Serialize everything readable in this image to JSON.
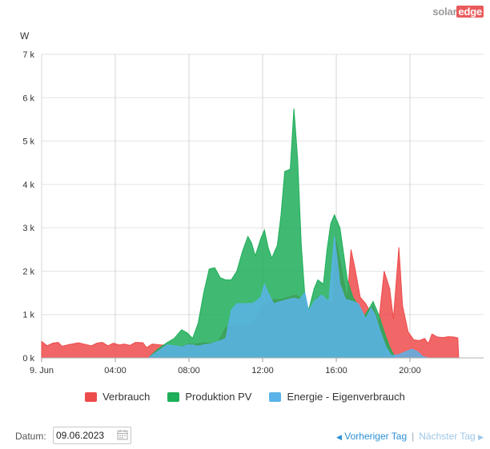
{
  "logo": {
    "part1": "solar",
    "part2": "edge"
  },
  "chart_data": {
    "type": "area",
    "ylabel": "W",
    "y_ticks": [
      "0 k",
      "1 k",
      "2 k",
      "3 k",
      "4 k",
      "5 k",
      "6 k",
      "7 k"
    ],
    "ylim": [
      0,
      7000
    ],
    "x_ticks": [
      {
        "label": "9. Jun",
        "h": 0
      },
      {
        "label": "04:00",
        "h": 4
      },
      {
        "label": "08:00",
        "h": 8
      },
      {
        "label": "12:00",
        "h": 12
      },
      {
        "label": "16:00",
        "h": 16
      },
      {
        "label": "20:00",
        "h": 20
      }
    ],
    "xlim_hours": [
      0,
      24
    ],
    "grid": true,
    "legend_position": "bottom",
    "series": [
      {
        "name": "Verbrauch",
        "color": "#ee4b4b",
        "points": [
          [
            0,
            380
          ],
          [
            0.3,
            280
          ],
          [
            0.6,
            340
          ],
          [
            0.9,
            360
          ],
          [
            1.1,
            270
          ],
          [
            1.5,
            310
          ],
          [
            2,
            350
          ],
          [
            2.4,
            310
          ],
          [
            2.7,
            280
          ],
          [
            3,
            340
          ],
          [
            3.3,
            360
          ],
          [
            3.6,
            280
          ],
          [
            3.9,
            340
          ],
          [
            4.2,
            300
          ],
          [
            4.5,
            320
          ],
          [
            4.8,
            290
          ],
          [
            5.1,
            360
          ],
          [
            5.5,
            350
          ],
          [
            5.7,
            240
          ],
          [
            6,
            320
          ],
          [
            6.5,
            300
          ],
          [
            7,
            290
          ],
          [
            7.5,
            250
          ],
          [
            8,
            320
          ],
          [
            8.4,
            320
          ],
          [
            8.8,
            350
          ],
          [
            9.2,
            340
          ],
          [
            9.6,
            380
          ],
          [
            10,
            700
          ],
          [
            10.5,
            750
          ],
          [
            11,
            760
          ],
          [
            11.5,
            780
          ],
          [
            12,
            1250
          ],
          [
            12.3,
            1260
          ],
          [
            12.6,
            1350
          ],
          [
            13,
            1350
          ],
          [
            13.4,
            1400
          ],
          [
            13.8,
            1450
          ],
          [
            14.2,
            1350
          ],
          [
            14.5,
            1080
          ],
          [
            15,
            1400
          ],
          [
            15.5,
            1300
          ],
          [
            15.8,
            1280
          ],
          [
            16,
            2700
          ],
          [
            16.3,
            2000
          ],
          [
            16.6,
            1350
          ],
          [
            16.8,
            2500
          ],
          [
            17,
            2100
          ],
          [
            17.3,
            1400
          ],
          [
            17.6,
            1250
          ],
          [
            17.8,
            1100
          ],
          [
            18,
            1200
          ],
          [
            18.3,
            800
          ],
          [
            18.6,
            2000
          ],
          [
            18.9,
            1600
          ],
          [
            19.1,
            900
          ],
          [
            19.4,
            2550
          ],
          [
            19.6,
            1200
          ],
          [
            19.9,
            600
          ],
          [
            20.2,
            420
          ],
          [
            20.5,
            400
          ],
          [
            20.8,
            450
          ],
          [
            21,
            330
          ],
          [
            21.2,
            550
          ],
          [
            21.5,
            480
          ],
          [
            21.8,
            470
          ],
          [
            22.1,
            490
          ],
          [
            22.4,
            480
          ],
          [
            22.6,
            460
          ],
          [
            22.65,
            0
          ]
        ]
      },
      {
        "name": "Produktion PV",
        "color": "#1fae5a",
        "points": [
          [
            5.8,
            0
          ],
          [
            6.3,
            200
          ],
          [
            6.8,
            350
          ],
          [
            7.2,
            450
          ],
          [
            7.6,
            650
          ],
          [
            7.9,
            580
          ],
          [
            8.2,
            450
          ],
          [
            8.5,
            800
          ],
          [
            8.8,
            1500
          ],
          [
            9.1,
            2050
          ],
          [
            9.4,
            2080
          ],
          [
            9.7,
            1850
          ],
          [
            10,
            1800
          ],
          [
            10.3,
            1800
          ],
          [
            10.6,
            2000
          ],
          [
            10.9,
            2450
          ],
          [
            11.2,
            2800
          ],
          [
            11.4,
            2650
          ],
          [
            11.6,
            2350
          ],
          [
            11.9,
            2750
          ],
          [
            12.1,
            2950
          ],
          [
            12.3,
            2550
          ],
          [
            12.5,
            2300
          ],
          [
            12.8,
            2600
          ],
          [
            13,
            3300
          ],
          [
            13.2,
            4300
          ],
          [
            13.5,
            4350
          ],
          [
            13.7,
            5750
          ],
          [
            13.9,
            4600
          ],
          [
            14.1,
            2600
          ],
          [
            14.3,
            1400
          ],
          [
            14.5,
            1100
          ],
          [
            14.8,
            1600
          ],
          [
            15,
            1800
          ],
          [
            15.3,
            1700
          ],
          [
            15.5,
            2500
          ],
          [
            15.7,
            3100
          ],
          [
            15.9,
            3300
          ],
          [
            16.2,
            3000
          ],
          [
            16.6,
            1800
          ],
          [
            16.9,
            1400
          ],
          [
            17.2,
            1200
          ],
          [
            17.5,
            950
          ],
          [
            17.8,
            1150
          ],
          [
            18,
            1300
          ],
          [
            18.3,
            1000
          ],
          [
            18.6,
            600
          ],
          [
            18.9,
            250
          ],
          [
            19.2,
            0
          ]
        ]
      },
      {
        "name": "Energie - Eigenverbrauch",
        "color": "#5ab3e8",
        "points": [
          [
            5.8,
            0
          ],
          [
            6.3,
            150
          ],
          [
            6.8,
            300
          ],
          [
            7.2,
            280
          ],
          [
            7.6,
            250
          ],
          [
            7.9,
            300
          ],
          [
            8.2,
            300
          ],
          [
            8.5,
            270
          ],
          [
            8.8,
            300
          ],
          [
            9.2,
            330
          ],
          [
            9.6,
            380
          ],
          [
            10,
            450
          ],
          [
            10.3,
            1100
          ],
          [
            10.6,
            1250
          ],
          [
            11,
            1250
          ],
          [
            11.5,
            1260
          ],
          [
            11.9,
            1400
          ],
          [
            12.1,
            1700
          ],
          [
            12.3,
            1500
          ],
          [
            12.6,
            1250
          ],
          [
            13,
            1300
          ],
          [
            13.4,
            1350
          ],
          [
            13.7,
            1380
          ],
          [
            14,
            1350
          ],
          [
            14.3,
            1500
          ],
          [
            14.5,
            1080
          ],
          [
            14.8,
            1300
          ],
          [
            15.2,
            1450
          ],
          [
            15.6,
            1300
          ],
          [
            15.9,
            2800
          ],
          [
            16.2,
            1700
          ],
          [
            16.5,
            1350
          ],
          [
            16.9,
            1300
          ],
          [
            17.2,
            1250
          ],
          [
            17.6,
            900
          ],
          [
            17.9,
            1150
          ],
          [
            18.1,
            1000
          ],
          [
            18.4,
            600
          ],
          [
            18.7,
            250
          ],
          [
            19,
            50
          ],
          [
            19.4,
            80
          ],
          [
            19.8,
            150
          ],
          [
            20.1,
            200
          ],
          [
            20.4,
            150
          ],
          [
            20.7,
            30
          ],
          [
            21,
            0
          ]
        ]
      }
    ]
  },
  "footer": {
    "date_label": "Datum:",
    "date_value": "09.06.2023",
    "prev_label": "Vorheriger Tag",
    "separator": "|",
    "next_label": "Nächster Tag"
  }
}
